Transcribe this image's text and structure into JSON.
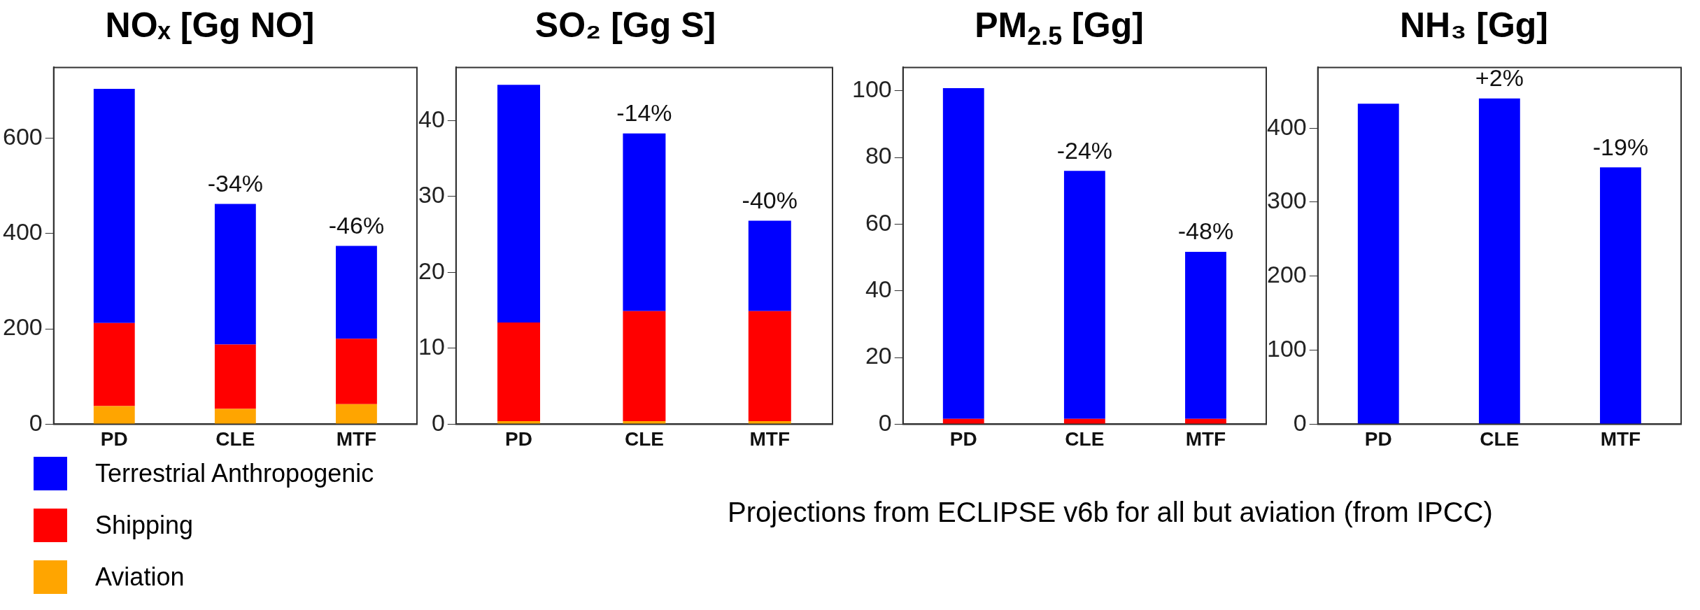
{
  "chart_data": [
    {
      "type": "bar",
      "title": "NOₓ [Gg NO]",
      "categories": [
        "PD",
        "CLE",
        "MTF"
      ],
      "stacked": true,
      "ylim": [
        0,
        748
      ],
      "yticks": [
        0,
        200,
        400,
        600
      ],
      "grid": false,
      "legend": "bottom left",
      "series": [
        {
          "name": "Aviation",
          "color": "#ffa500",
          "values": [
            38,
            32,
            42
          ]
        },
        {
          "name": "Shipping",
          "color": "#ff0000",
          "values": [
            174,
            135,
            137
          ]
        },
        {
          "name": "Terrestrial Anthropogenic",
          "color": "#0000ff",
          "values": [
            491,
            295,
            195
          ]
        }
      ],
      "annotations": [
        {
          "text": "-34%",
          "x": "CLE",
          "y": 462
        },
        {
          "text": "-46%",
          "x": "MTF",
          "y": 374
        }
      ]
    },
    {
      "type": "bar",
      "title": "SO₂ [Gg S]",
      "categories": [
        "PD",
        "CLE",
        "MTF"
      ],
      "stacked": true,
      "ylim": [
        0,
        47
      ],
      "yticks": [
        0,
        10,
        20,
        30,
        40
      ],
      "grid": false,
      "series": [
        {
          "color": "#ffa500",
          "values": [
            0.4,
            0.4,
            0.4
          ]
        },
        {
          "color": "#ff0000",
          "values": [
            13,
            14.5,
            14.5
          ]
        },
        {
          "color": "#0000ff",
          "values": [
            31.3,
            23.4,
            11.9
          ]
        }
      ],
      "annotations": [
        {
          "text": "-14%",
          "x": "CLE",
          "y": 38.3
        },
        {
          "text": "-40%",
          "x": "MTF",
          "y": 26.8
        }
      ]
    },
    {
      "type": "bar",
      "title": "PM$_{2.5}$ [Gg]",
      "categories": [
        "PD",
        "CLE",
        "MTF"
      ],
      "stacked": true,
      "ylim": [
        0,
        107
      ],
      "yticks": [
        0,
        20,
        40,
        60,
        80,
        100
      ],
      "grid": false,
      "series": [
        {
          "color": "#ff0000",
          "values": [
            1.6,
            1.6,
            1.6
          ]
        },
        {
          "color": "#0000ff",
          "values": [
            99.2,
            74.4,
            50.1
          ]
        }
      ],
      "annotations": [
        {
          "text": "-24%",
          "x": "CLE",
          "y": 76
        },
        {
          "text": "-48%",
          "x": "MTF",
          "y": 51.7
        }
      ]
    },
    {
      "type": "bar",
      "title": "NH₃ [Gg]",
      "categories": [
        "PD",
        "CLE",
        "MTF"
      ],
      "stacked": true,
      "ylim": [
        0,
        482
      ],
      "yticks": [
        0,
        100,
        200,
        300,
        400
      ],
      "grid": false,
      "series": [
        {
          "color": "#0000ff",
          "values": [
            433,
            440,
            347
          ]
        }
      ],
      "annotations": [
        {
          "text": "+2%",
          "x": "CLE",
          "y": 440
        },
        {
          "text": "-19%",
          "x": "MTF",
          "y": 347
        },
        "Projections from ECLIPSE v6b for all but aviation (from IPCC)"
      ]
    }
  ]
}
